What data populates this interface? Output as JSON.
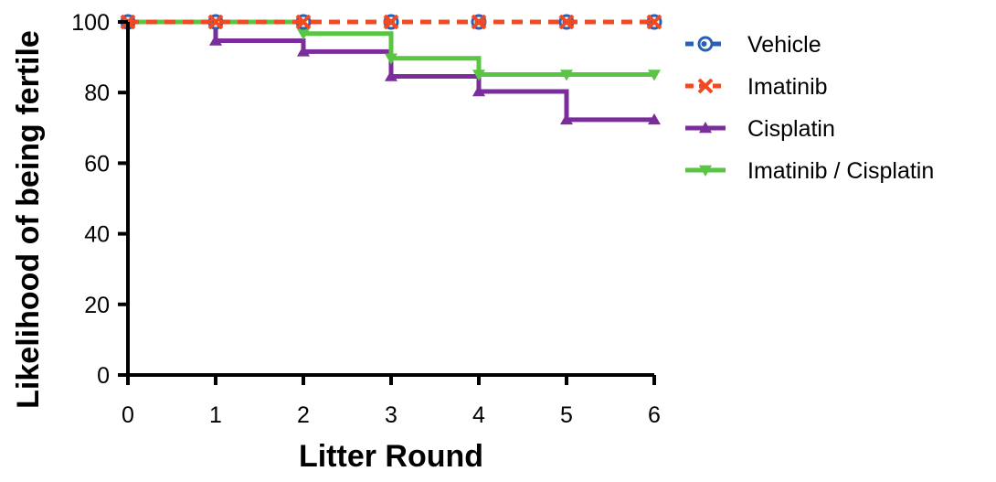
{
  "chart_data": {
    "type": "line",
    "step": true,
    "xlabel": "Litter Round",
    "ylabel": "Likelihood of being fertile",
    "xlim": [
      0,
      6
    ],
    "ylim": [
      0,
      100
    ],
    "x_ticks": [
      0,
      1,
      2,
      3,
      4,
      5,
      6
    ],
    "y_ticks": [
      0,
      20,
      40,
      60,
      80,
      100
    ],
    "grid": false,
    "legend_position": "right",
    "x": [
      0,
      1,
      2,
      3,
      4,
      5,
      6
    ],
    "series": [
      {
        "name": "Vehicle",
        "color": "#2b5fb4",
        "marker": "circle",
        "dashed": true,
        "values": [
          100,
          100,
          100,
          100,
          100,
          100,
          100
        ]
      },
      {
        "name": "Imatinib",
        "color": "#f04a23",
        "marker": "x",
        "dashed": true,
        "values": [
          100,
          100,
          100,
          100,
          100,
          100,
          100
        ]
      },
      {
        "name": "Cisplatin",
        "color": "#7a2d9b",
        "marker": "triangle-up",
        "dashed": false,
        "values": [
          100,
          94.7,
          91.6,
          84.6,
          80.3,
          72.3,
          72.3
        ]
      },
      {
        "name": "Imatinib / Cisplatin",
        "color": "#5ac443",
        "marker": "triangle-down",
        "dashed": false,
        "values": [
          100,
          100,
          96.7,
          89.7,
          85.1,
          85.1,
          85.1
        ]
      }
    ]
  }
}
